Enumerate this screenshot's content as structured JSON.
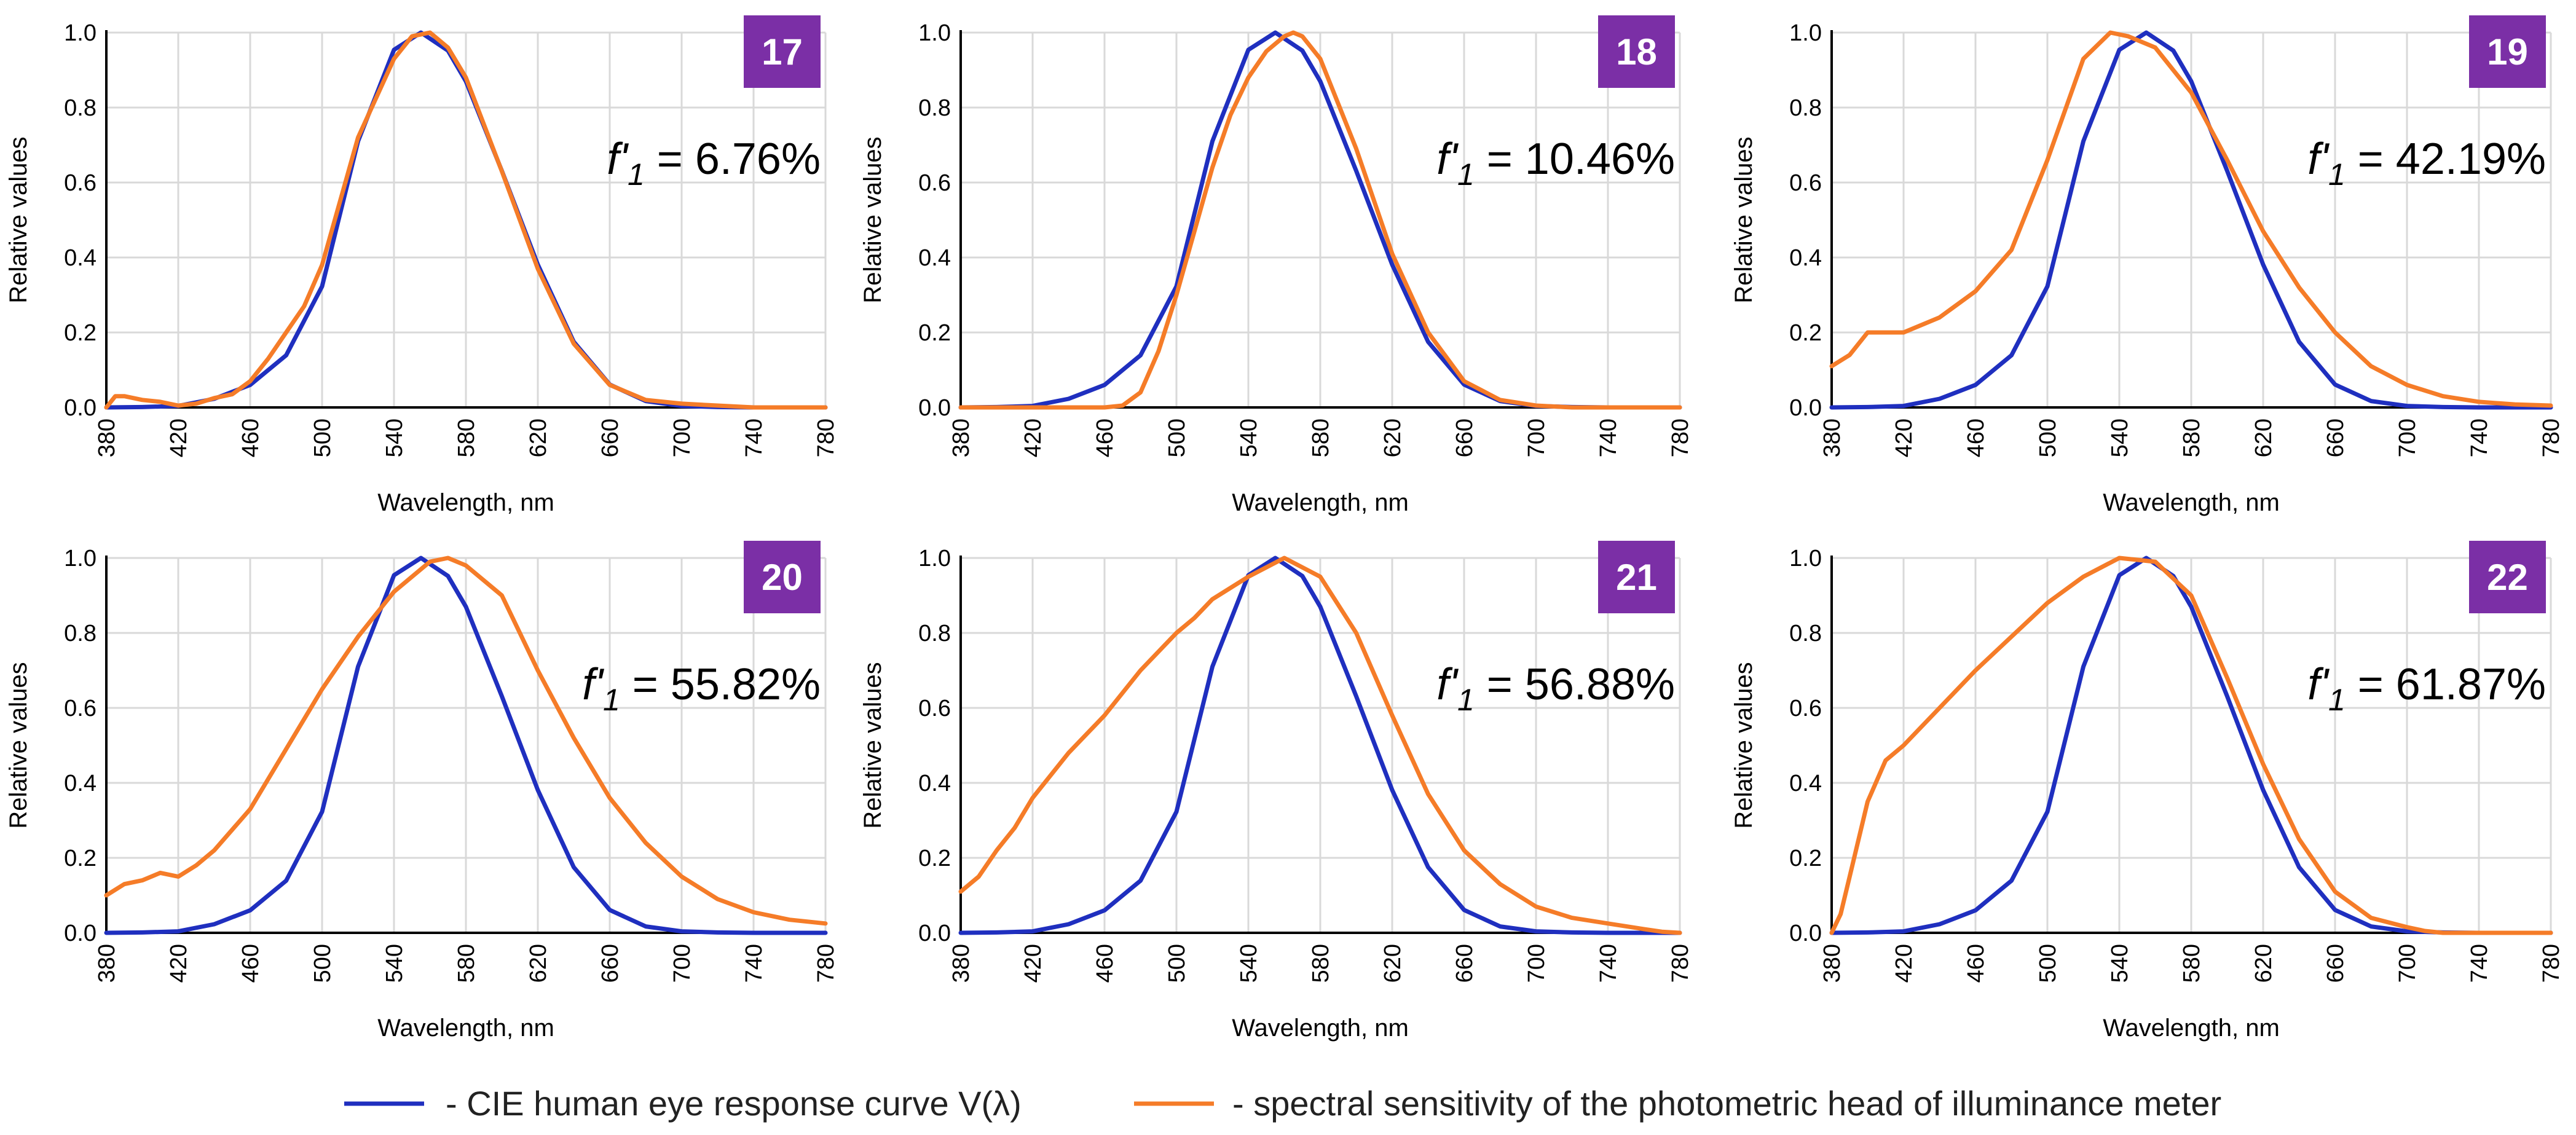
{
  "chart_data": [
    {
      "type": "line",
      "panel": "17",
      "f1_value": "6.76%",
      "xlabel": "Wavelength, nm",
      "ylabel": "Relative values",
      "xlim": [
        380,
        780
      ],
      "ylim": [
        0,
        1.0
      ],
      "xticks": [
        380,
        420,
        460,
        500,
        540,
        580,
        620,
        660,
        700,
        740,
        780
      ],
      "yticks": [
        "0.0",
        "0.2",
        "0.4",
        "0.6",
        "0.8",
        "1.0"
      ],
      "series": [
        {
          "name": "cie",
          "x": [
            380,
            400,
            420,
            440,
            460,
            480,
            500,
            520,
            540,
            555,
            570,
            580,
            600,
            620,
            640,
            660,
            680,
            700,
            720,
            740,
            780
          ],
          "y": [
            0,
            0.001,
            0.004,
            0.023,
            0.06,
            0.139,
            0.323,
            0.71,
            0.954,
            1.0,
            0.952,
            0.87,
            0.631,
            0.381,
            0.175,
            0.061,
            0.017,
            0.004,
            0.001,
            0,
            0
          ]
        },
        {
          "name": "head",
          "x": [
            380,
            385,
            390,
            400,
            410,
            420,
            430,
            440,
            450,
            460,
            470,
            480,
            490,
            500,
            520,
            540,
            550,
            560,
            570,
            580,
            600,
            620,
            640,
            660,
            680,
            700,
            720,
            740,
            780
          ],
          "y": [
            0,
            0.03,
            0.03,
            0.02,
            0.015,
            0.005,
            0.01,
            0.025,
            0.035,
            0.07,
            0.13,
            0.2,
            0.27,
            0.38,
            0.72,
            0.93,
            0.99,
            1.0,
            0.96,
            0.88,
            0.63,
            0.37,
            0.17,
            0.06,
            0.02,
            0.01,
            0.005,
            0,
            0
          ]
        }
      ]
    },
    {
      "type": "line",
      "panel": "18",
      "f1_value": "10.46%",
      "xlabel": "Wavelength, nm",
      "ylabel": "Relative values",
      "xlim": [
        380,
        780
      ],
      "ylim": [
        0,
        1.0
      ],
      "xticks": [
        380,
        420,
        460,
        500,
        540,
        580,
        620,
        660,
        700,
        740,
        780
      ],
      "yticks": [
        "0.0",
        "0.2",
        "0.4",
        "0.6",
        "0.8",
        "1.0"
      ],
      "series": [
        {
          "name": "cie",
          "x": [
            380,
            400,
            420,
            440,
            460,
            480,
            500,
            520,
            540,
            555,
            570,
            580,
            600,
            620,
            640,
            660,
            680,
            700,
            720,
            740,
            780
          ],
          "y": [
            0,
            0.001,
            0.004,
            0.023,
            0.06,
            0.139,
            0.323,
            0.71,
            0.954,
            1.0,
            0.952,
            0.87,
            0.631,
            0.381,
            0.175,
            0.061,
            0.017,
            0.004,
            0.001,
            0,
            0
          ]
        },
        {
          "name": "head",
          "x": [
            380,
            440,
            460,
            470,
            480,
            490,
            500,
            510,
            520,
            530,
            540,
            550,
            560,
            565,
            570,
            580,
            600,
            620,
            640,
            660,
            680,
            700,
            720,
            780
          ],
          "y": [
            0,
            0,
            0,
            0.005,
            0.04,
            0.15,
            0.3,
            0.47,
            0.64,
            0.78,
            0.88,
            0.95,
            0.99,
            1.0,
            0.99,
            0.93,
            0.69,
            0.41,
            0.2,
            0.07,
            0.02,
            0.005,
            0,
            0
          ]
        }
      ]
    },
    {
      "type": "line",
      "panel": "19",
      "f1_value": "42.19%",
      "xlabel": "Wavelength, nm",
      "ylabel": "Relative values",
      "xlim": [
        380,
        780
      ],
      "ylim": [
        0,
        1.0
      ],
      "xticks": [
        380,
        420,
        460,
        500,
        540,
        580,
        620,
        660,
        700,
        740,
        780
      ],
      "yticks": [
        "0.0",
        "0.2",
        "0.4",
        "0.6",
        "0.8",
        "1.0"
      ],
      "series": [
        {
          "name": "cie",
          "x": [
            380,
            400,
            420,
            440,
            460,
            480,
            500,
            520,
            540,
            555,
            570,
            580,
            600,
            620,
            640,
            660,
            680,
            700,
            720,
            740,
            780
          ],
          "y": [
            0,
            0.001,
            0.004,
            0.023,
            0.06,
            0.139,
            0.323,
            0.71,
            0.954,
            1.0,
            0.952,
            0.87,
            0.631,
            0.381,
            0.175,
            0.061,
            0.017,
            0.004,
            0.001,
            0,
            0
          ]
        },
        {
          "name": "head",
          "x": [
            380,
            390,
            400,
            405,
            420,
            440,
            460,
            480,
            500,
            520,
            535,
            545,
            560,
            580,
            600,
            620,
            640,
            660,
            680,
            700,
            720,
            740,
            760,
            780
          ],
          "y": [
            0.11,
            0.14,
            0.2,
            0.2,
            0.2,
            0.24,
            0.31,
            0.42,
            0.66,
            0.93,
            1.0,
            0.99,
            0.96,
            0.84,
            0.66,
            0.47,
            0.32,
            0.2,
            0.11,
            0.06,
            0.03,
            0.015,
            0.008,
            0.005
          ]
        }
      ]
    },
    {
      "type": "line",
      "panel": "20",
      "f1_value": "55.82%",
      "xlabel": "Wavelength, nm",
      "ylabel": "Relative values",
      "xlim": [
        380,
        780
      ],
      "ylim": [
        0,
        1.0
      ],
      "xticks": [
        380,
        420,
        460,
        500,
        540,
        580,
        620,
        660,
        700,
        740,
        780
      ],
      "yticks": [
        "0.0",
        "0.2",
        "0.4",
        "0.6",
        "0.8",
        "1.0"
      ],
      "series": [
        {
          "name": "cie",
          "x": [
            380,
            400,
            420,
            440,
            460,
            480,
            500,
            520,
            540,
            555,
            570,
            580,
            600,
            620,
            640,
            660,
            680,
            700,
            720,
            740,
            780
          ],
          "y": [
            0,
            0.001,
            0.004,
            0.023,
            0.06,
            0.139,
            0.323,
            0.71,
            0.954,
            1.0,
            0.952,
            0.87,
            0.631,
            0.381,
            0.175,
            0.061,
            0.017,
            0.004,
            0.001,
            0,
            0
          ]
        },
        {
          "name": "head",
          "x": [
            380,
            390,
            400,
            410,
            420,
            430,
            440,
            460,
            480,
            500,
            520,
            540,
            560,
            570,
            580,
            600,
            620,
            640,
            660,
            680,
            700,
            720,
            740,
            760,
            780
          ],
          "y": [
            0.1,
            0.13,
            0.14,
            0.16,
            0.15,
            0.18,
            0.22,
            0.33,
            0.49,
            0.65,
            0.79,
            0.91,
            0.99,
            1.0,
            0.98,
            0.9,
            0.7,
            0.52,
            0.36,
            0.24,
            0.15,
            0.09,
            0.055,
            0.035,
            0.025
          ]
        }
      ]
    },
    {
      "type": "line",
      "panel": "21",
      "f1_value": "56.88%",
      "xlabel": "Wavelength, nm",
      "ylabel": "Relative values",
      "xlim": [
        380,
        780
      ],
      "ylim": [
        0,
        1.0
      ],
      "xticks": [
        380,
        420,
        460,
        500,
        540,
        580,
        620,
        660,
        700,
        740,
        780
      ],
      "yticks": [
        "0.0",
        "0.2",
        "0.4",
        "0.6",
        "0.8",
        "1.0"
      ],
      "series": [
        {
          "name": "cie",
          "x": [
            380,
            400,
            420,
            440,
            460,
            480,
            500,
            520,
            540,
            555,
            570,
            580,
            600,
            620,
            640,
            660,
            680,
            700,
            720,
            740,
            780
          ],
          "y": [
            0,
            0.001,
            0.004,
            0.023,
            0.06,
            0.139,
            0.323,
            0.71,
            0.954,
            1.0,
            0.952,
            0.87,
            0.631,
            0.381,
            0.175,
            0.061,
            0.017,
            0.004,
            0.001,
            0,
            0
          ]
        },
        {
          "name": "head",
          "x": [
            380,
            390,
            400,
            410,
            420,
            440,
            460,
            480,
            500,
            510,
            520,
            540,
            560,
            580,
            600,
            620,
            640,
            660,
            680,
            700,
            720,
            740,
            760,
            770,
            780
          ],
          "y": [
            0.11,
            0.15,
            0.22,
            0.28,
            0.36,
            0.48,
            0.58,
            0.7,
            0.8,
            0.84,
            0.89,
            0.95,
            1.0,
            0.95,
            0.8,
            0.58,
            0.37,
            0.22,
            0.13,
            0.07,
            0.04,
            0.025,
            0.01,
            0.003,
            0
          ]
        }
      ]
    },
    {
      "type": "line",
      "panel": "22",
      "f1_value": "61.87%",
      "xlabel": "Wavelength, nm",
      "ylabel": "Relative values",
      "xlim": [
        380,
        780
      ],
      "ylim": [
        0,
        1.0
      ],
      "xticks": [
        380,
        420,
        460,
        500,
        540,
        580,
        620,
        660,
        700,
        740,
        780
      ],
      "yticks": [
        "0.0",
        "0.2",
        "0.4",
        "0.6",
        "0.8",
        "1.0"
      ],
      "series": [
        {
          "name": "cie",
          "x": [
            380,
            400,
            420,
            440,
            460,
            480,
            500,
            520,
            540,
            555,
            570,
            580,
            600,
            620,
            640,
            660,
            680,
            700,
            720,
            740,
            780
          ],
          "y": [
            0,
            0.001,
            0.004,
            0.023,
            0.06,
            0.139,
            0.323,
            0.71,
            0.954,
            1.0,
            0.952,
            0.87,
            0.631,
            0.381,
            0.175,
            0.061,
            0.017,
            0.004,
            0.001,
            0,
            0
          ]
        },
        {
          "name": "head",
          "x": [
            380,
            385,
            390,
            400,
            410,
            420,
            440,
            460,
            480,
            500,
            520,
            540,
            560,
            580,
            600,
            620,
            640,
            660,
            680,
            700,
            710,
            720,
            780
          ],
          "y": [
            0,
            0.05,
            0.15,
            0.35,
            0.46,
            0.5,
            0.6,
            0.7,
            0.79,
            0.88,
            0.95,
            1.0,
            0.99,
            0.9,
            0.68,
            0.45,
            0.25,
            0.11,
            0.04,
            0.015,
            0.005,
            0,
            0
          ]
        }
      ]
    }
  ],
  "legend": {
    "cie_label": "- CIE human eye response curve V(λ)",
    "head_label": "- spectral sensitivity of the photometric head of illuminance meter"
  },
  "colors": {
    "cie": "#1f2fbf",
    "head": "#f57c28",
    "badge": "#7b2fa6"
  }
}
